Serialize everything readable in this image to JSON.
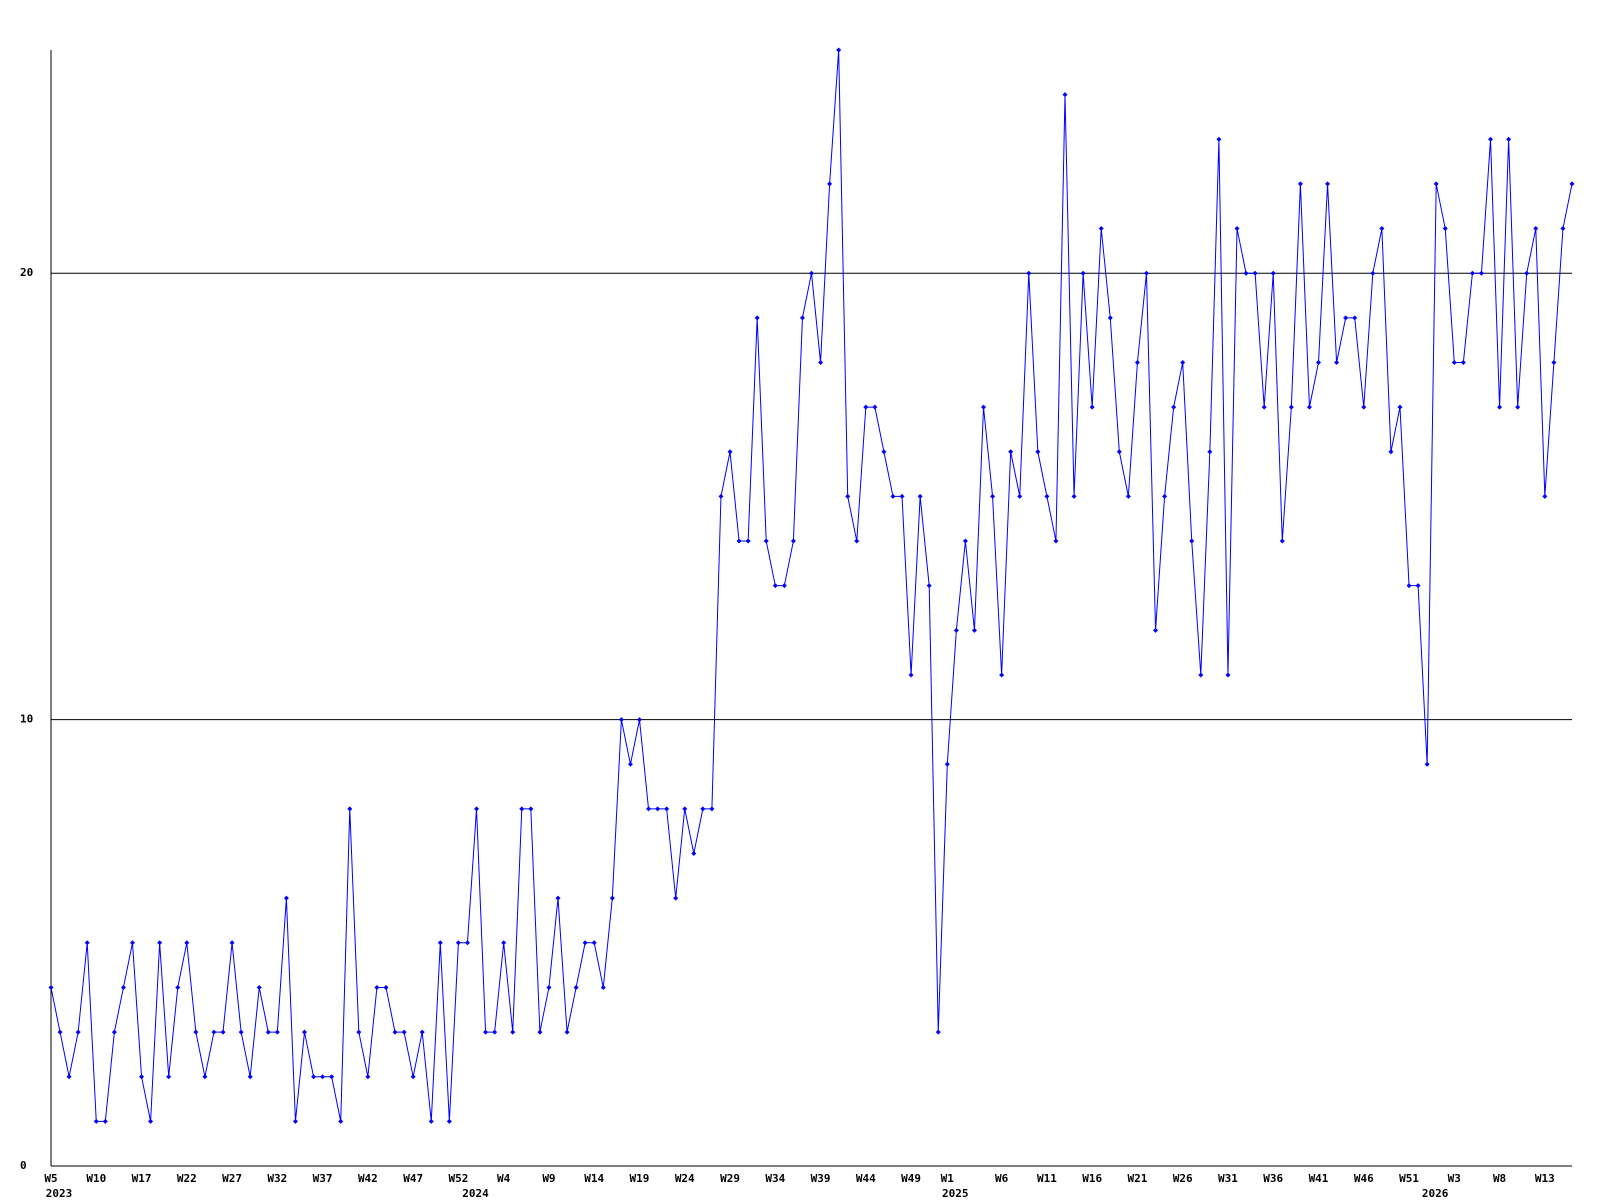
{
  "chart_data": {
    "type": "line",
    "categories": [
      "W5",
      null,
      null,
      null,
      null,
      "W10",
      null,
      null,
      null,
      null,
      "W17",
      null,
      null,
      null,
      null,
      "W22",
      null,
      null,
      null,
      null,
      "W27",
      null,
      null,
      null,
      null,
      "W32",
      null,
      null,
      null,
      null,
      "W37",
      null,
      null,
      null,
      null,
      "W42",
      null,
      null,
      null,
      null,
      "W47",
      null,
      null,
      null,
      null,
      "W52",
      null,
      null,
      null,
      null,
      "W4",
      null,
      null,
      null,
      null,
      "W9",
      null,
      null,
      null,
      null,
      "W14",
      null,
      null,
      null,
      null,
      "W19",
      null,
      null,
      null,
      null,
      "W24",
      null,
      null,
      null,
      null,
      "W29",
      null,
      null,
      null,
      null,
      "W34",
      null,
      null,
      null,
      null,
      "W39",
      null,
      null,
      null,
      null,
      "W44",
      null,
      null,
      null,
      null,
      "W49",
      null,
      null,
      null,
      "W1",
      null,
      null,
      null,
      null,
      null,
      "W6",
      null,
      null,
      null,
      null,
      "W11",
      null,
      null,
      null,
      null,
      "W16",
      null,
      null,
      null,
      null,
      "W21",
      null,
      null,
      null,
      null,
      "W26",
      null,
      null,
      null,
      null,
      "W31",
      null,
      null,
      null,
      null,
      "W36",
      null,
      null,
      null,
      null,
      "W41",
      null,
      null,
      null,
      null,
      "W46",
      null,
      null,
      null,
      null,
      "W51",
      null,
      null,
      null,
      null,
      "W3",
      null,
      null,
      null,
      null,
      "W8",
      null,
      null,
      null,
      null,
      "W13",
      null,
      null,
      null
    ],
    "year_categories": [
      "2023",
      null,
      null,
      null,
      null,
      null,
      null,
      null,
      null,
      null,
      null,
      null,
      null,
      null,
      null,
      null,
      null,
      null,
      null,
      null,
      null,
      null,
      null,
      null,
      null,
      null,
      null,
      null,
      null,
      null,
      null,
      null,
      null,
      null,
      null,
      null,
      null,
      null,
      null,
      null,
      null,
      null,
      null,
      null,
      null,
      null,
      "2024",
      null,
      null,
      null,
      null,
      null,
      null,
      null,
      null,
      null,
      null,
      null,
      null,
      null,
      null,
      null,
      null,
      null,
      null,
      null,
      null,
      null,
      null,
      null,
      null,
      null,
      null,
      null,
      null,
      null,
      null,
      null,
      null,
      null,
      null,
      null,
      null,
      null,
      null,
      null,
      null,
      null,
      null,
      null,
      null,
      null,
      null,
      null,
      null,
      null,
      null,
      null,
      null,
      "2025",
      null,
      null,
      null,
      null,
      null,
      null,
      null,
      null,
      null,
      null,
      null,
      null,
      null,
      null,
      null,
      null,
      null,
      null,
      null,
      null,
      null,
      null,
      null,
      null,
      null,
      null,
      null,
      null,
      null,
      null,
      null,
      null,
      null,
      null,
      null,
      null,
      null,
      null,
      null,
      null,
      null,
      null,
      null,
      null,
      null,
      null,
      null,
      null,
      null,
      null,
      null,
      null,
      "2026",
      null,
      null,
      null,
      null,
      null,
      null,
      null,
      null,
      null,
      null,
      null,
      null,
      null,
      null,
      null,
      null
    ],
    "series": [
      {
        "color": "#0000ff",
        "values": [
          4,
          3,
          2,
          3,
          5,
          1,
          1,
          3,
          4,
          5,
          2,
          1,
          5,
          2,
          4,
          5,
          3,
          2,
          3,
          3,
          5,
          3,
          2,
          4,
          3,
          3,
          6,
          1,
          3,
          2,
          2,
          2,
          1,
          8,
          3,
          2,
          4,
          4,
          3,
          3,
          2,
          3,
          1,
          5,
          1,
          5,
          5,
          8,
          3,
          3,
          5,
          3,
          8,
          8,
          3,
          4,
          6,
          3,
          4,
          5,
          5,
          4,
          6,
          10,
          9,
          10,
          8,
          8,
          8,
          6,
          8,
          7,
          8,
          8,
          15,
          16,
          14,
          14,
          19,
          14,
          13,
          13,
          14,
          19,
          20,
          18,
          22,
          25,
          15,
          14,
          17,
          17,
          16,
          15,
          15,
          11,
          15,
          13,
          3,
          9,
          12,
          14,
          12,
          17,
          15,
          11,
          16,
          15,
          20,
          16,
          15,
          14,
          24,
          15,
          20,
          17,
          21,
          19,
          16,
          15,
          18,
          20,
          12,
          15,
          17,
          18,
          14,
          11,
          16,
          23,
          11,
          21,
          20,
          20,
          17,
          20,
          14,
          17,
          22,
          17,
          18,
          22,
          18,
          19,
          19,
          17,
          20,
          21,
          16,
          17,
          13,
          13,
          9,
          22,
          21,
          18,
          18,
          20,
          20,
          23,
          17,
          23,
          17,
          20,
          21,
          15,
          18,
          21,
          22
        ]
      }
    ],
    "ylim": [
      0,
      25
    ],
    "yticks": [
      0,
      10,
      20
    ],
    "grid": true
  }
}
